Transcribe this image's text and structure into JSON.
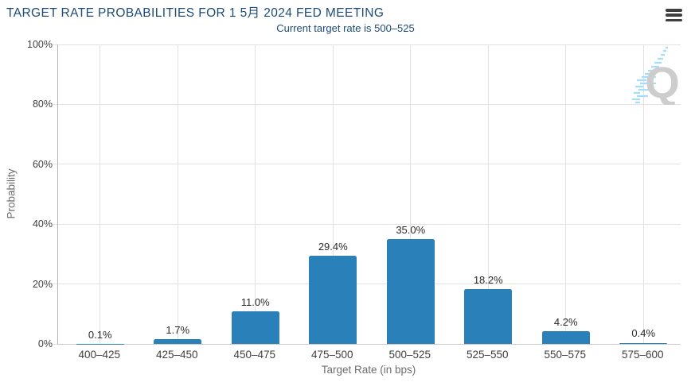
{
  "header": {
    "title": "TARGET RATE PROBABILITIES FOR 1 5月 2024 FED MEETING",
    "subtitle": "Current target rate is 500–525"
  },
  "chart_data": {
    "type": "bar",
    "title": "TARGET RATE PROBABILITIES FOR 1 5月 2024 FED MEETING",
    "subtitle": "Current target rate is 500–525",
    "categories": [
      "400–425",
      "425–450",
      "450–475",
      "475–500",
      "500–525",
      "525–550",
      "550–575",
      "575–600"
    ],
    "values": [
      0.1,
      1.7,
      11.0,
      29.4,
      35.0,
      18.2,
      4.2,
      0.4
    ],
    "value_labels": [
      "0.1%",
      "1.7%",
      "11.0%",
      "29.4%",
      "35.0%",
      "18.2%",
      "4.2%",
      "0.4%"
    ],
    "xlabel": "Target Rate (in bps)",
    "ylabel": "Probability",
    "ylim": [
      0,
      100
    ],
    "yticks": [
      {
        "v": 0,
        "label": "0%"
      },
      {
        "v": 20,
        "label": "20%"
      },
      {
        "v": 40,
        "label": "40%"
      },
      {
        "v": 60,
        "label": "60%"
      },
      {
        "v": 80,
        "label": "80%"
      },
      {
        "v": 100,
        "label": "100%"
      }
    ],
    "grid": true,
    "legend": false,
    "bar_color": "#2a80b9"
  },
  "watermark": {
    "letter": "Q"
  },
  "colors": {
    "title-color": "#1d4b77",
    "bar-color": "#2a80b9",
    "grid-color": "#e2e2e2",
    "yaxis-line": "#b3b3b3",
    "baseline": "#c8c8c8",
    "axis-title-color": "#6e6e6e",
    "menu-color": "#3f3f3f",
    "watermark-q": "#cdcdcd",
    "watermark-dash": "#a6def7"
  }
}
